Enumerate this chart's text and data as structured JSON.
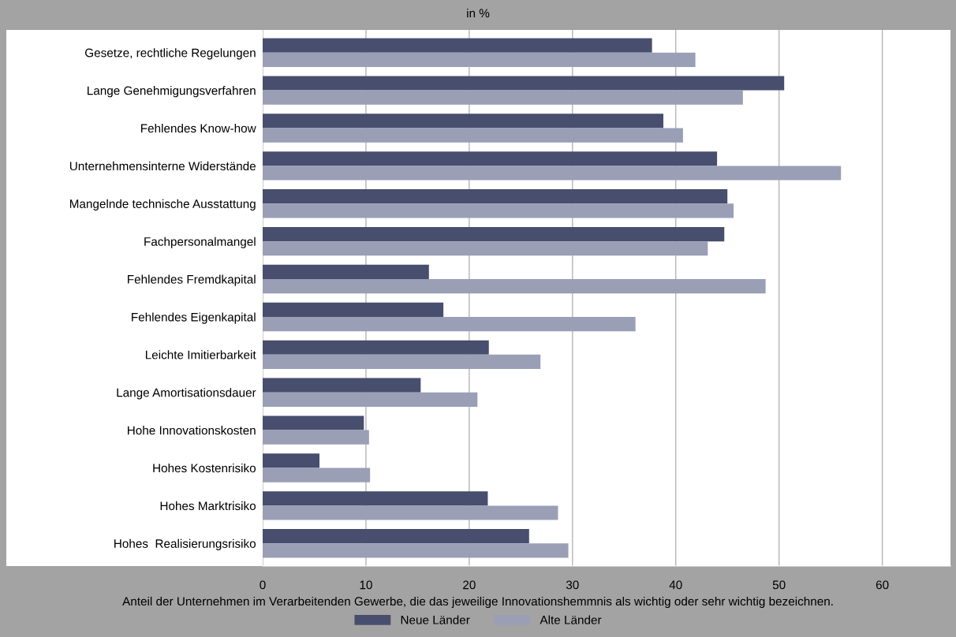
{
  "chart_data": {
    "type": "bar",
    "orientation": "horizontal",
    "subtitle": "in %",
    "xlabel": "Anteil der Unternehmen im Verarbeitenden Gewerbe, die das jeweilige Innovationshemmnis als wichtig oder sehr wichtig bezeichnen.",
    "categories": [
      "Gesetze, rechtliche Regelungen",
      "Lange Genehmigungsverfahren",
      "Fehlendes Know-how",
      "Unternehmensinterne Widerstände",
      "Mangelnde technische Ausstattung",
      "Fachpersonalmangel",
      "Fehlendes Fremdkapital",
      "Fehlendes Eigenkapital",
      "Leichte Imitierbarkeit",
      "Lange Amortisationsdauer",
      "Hohe Innovationskosten",
      "Hohes Kostenrisiko",
      "Hohes Marktrisiko",
      "Hohes  Realisierungsrisiko"
    ],
    "series": [
      {
        "name": "Neue Länder",
        "color": "#484e6e",
        "values": [
          37.7,
          50.5,
          38.8,
          44.0,
          45.0,
          44.7,
          16.1,
          17.5,
          21.9,
          15.3,
          9.8,
          5.5,
          21.8,
          25.8
        ]
      },
      {
        "name": "Alte Länder",
        "color": "#9a9fb6",
        "values": [
          41.9,
          46.5,
          40.7,
          56.0,
          45.6,
          43.1,
          48.7,
          36.1,
          26.9,
          20.8,
          10.3,
          10.4,
          28.6,
          29.6
        ]
      }
    ],
    "xlim": [
      0,
      66.6
    ],
    "xticks": [
      0,
      10,
      20,
      30,
      40,
      50,
      60
    ],
    "grid": "x",
    "legend": "bottom"
  }
}
